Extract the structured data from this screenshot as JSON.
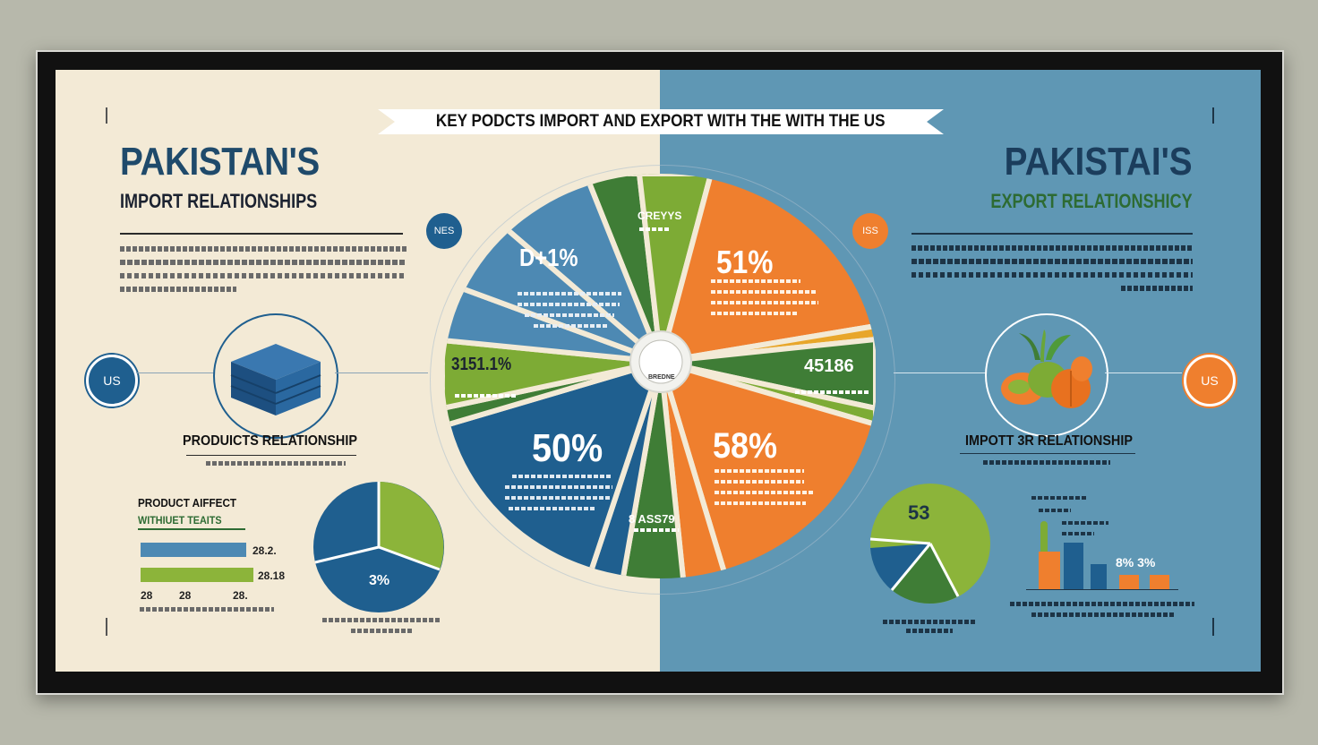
{
  "banner": {
    "text": "KEY PODCTS IMPORT AND EXPORT WITH THE WITH THE US"
  },
  "left": {
    "title": "PAKISTAN'S",
    "subtitle": "IMPORT RELATIONSHIPS",
    "us_badge": "US",
    "nes_badge": "NES",
    "products_label": "PRODUICTS RELATIONSHIP",
    "product_affect": "PRODUCT AIFFECT",
    "product_affect_sub": "WITHIUET TEAITS",
    "bar_values": [
      "28.2.",
      "28.18"
    ],
    "bar_axis": [
      "28",
      "28",
      "28."
    ],
    "pie_label": "3%"
  },
  "right": {
    "title": "PAKISTAI'S",
    "subtitle": "EXPORT RELATIONSHICY",
    "us_badge": "US",
    "iss_badge": "ISS",
    "import_label": "IMPOTT 3R RELATIONSHIP",
    "pie_label": "53",
    "bar_values": "8% 3%"
  },
  "wheel": {
    "segments": [
      {
        "label": "D+1%"
      },
      {
        "label": "CREYYS"
      },
      {
        "label": "51%"
      },
      {
        "label": "3151.1%"
      },
      {
        "label": "45186"
      },
      {
        "label": "50%"
      },
      {
        "label": "8 ASS79"
      },
      {
        "label": "58%"
      }
    ],
    "center_label": "BREDNE"
  },
  "colors": {
    "blue_dark": "#1f5f8f",
    "blue_light": "#4d89b3",
    "green": "#7dab35",
    "green_dark": "#3f7d36",
    "orange": "#ef7f2e",
    "cream": "#f3ead6"
  }
}
